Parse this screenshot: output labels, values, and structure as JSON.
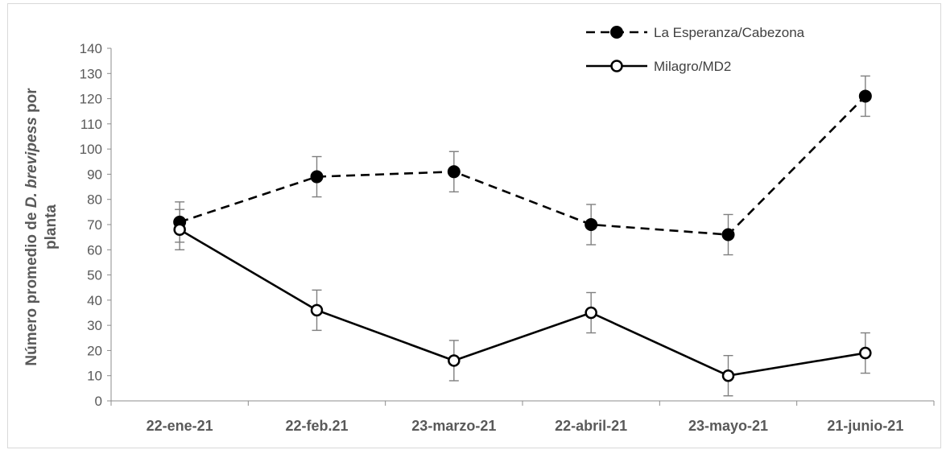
{
  "chart_data": {
    "type": "line",
    "title": "",
    "xlabel": "",
    "ylabel": {
      "part1": "Número promedio de ",
      "italic": "D. brevipess",
      "part2": " por",
      "line2": "planta"
    },
    "categories": [
      "22-ene-21",
      "22-feb.21",
      "23-marzo-21",
      "22-abril-21",
      "23-mayo-21",
      "21-junio-21"
    ],
    "y_ticks": [
      "0",
      "10",
      "20",
      "30",
      "40",
      "50",
      "60",
      "70",
      "80",
      "90",
      "100",
      "110",
      "120",
      "130",
      "140"
    ],
    "ylim": [
      0,
      140
    ],
    "grid": false,
    "legend_position": "top-right",
    "series": [
      {
        "name": "La Esperanza/Cabezona",
        "values": [
          71,
          89,
          91,
          70,
          66,
          121
        ],
        "error": [
          8,
          8,
          8,
          8,
          8,
          8
        ],
        "line_style": "dashed",
        "marker": "filled-circle",
        "color": "#000000"
      },
      {
        "name": "Milagro/MD2",
        "values": [
          68,
          36,
          16,
          35,
          10,
          19
        ],
        "error": [
          8,
          8,
          8,
          8,
          8,
          8
        ],
        "line_style": "solid",
        "marker": "open-circle",
        "color": "#000000"
      }
    ]
  }
}
